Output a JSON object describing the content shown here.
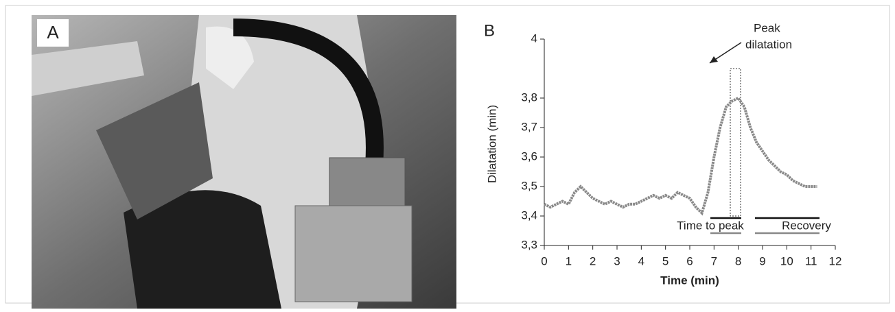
{
  "photo": {
    "label": "A"
  },
  "chart_data": {
    "type": "line",
    "panel_label": "B",
    "x_label": "Time (min)",
    "y_label": "Dilatation (min)",
    "annotations": [
      "Peak",
      "dilatation",
      "Time to peak",
      "Recovery"
    ],
    "xlim": [
      0,
      12
    ],
    "xticks": [
      0,
      1,
      2,
      3,
      4,
      5,
      6,
      7,
      8,
      9,
      10,
      11,
      12
    ],
    "ylim": [
      3.3,
      4
    ],
    "yticks": [
      {
        "value": 3.3,
        "label": "3,3"
      },
      {
        "value": 3.4,
        "label": "3,4"
      },
      {
        "value": 3.5,
        "label": "3,5"
      },
      {
        "value": 3.6,
        "label": "3,6"
      },
      {
        "value": 3.7,
        "label": "3,7"
      },
      {
        "value": 3.8,
        "label": "3,8"
      },
      4
    ],
    "color": "#8a8a8a",
    "x": [
      0,
      0.25,
      0.5,
      0.75,
      1,
      1.25,
      1.5,
      1.75,
      2,
      2.25,
      2.5,
      2.75,
      3,
      3.25,
      3.5,
      3.75,
      4,
      4.25,
      4.5,
      4.75,
      5,
      5.25,
      5.5,
      5.75,
      6,
      6.25,
      6.5,
      6.75,
      7,
      7.25,
      7.5,
      7.75,
      8,
      8.25,
      8.5,
      8.75,
      9,
      9.25,
      9.5,
      9.75,
      10,
      10.25,
      10.5,
      10.75,
      11,
      11.25
    ],
    "values": [
      3.44,
      3.43,
      3.44,
      3.45,
      3.44,
      3.48,
      3.5,
      3.48,
      3.46,
      3.45,
      3.44,
      3.45,
      3.44,
      3.43,
      3.44,
      3.44,
      3.45,
      3.46,
      3.47,
      3.46,
      3.47,
      3.46,
      3.48,
      3.47,
      3.46,
      3.43,
      3.41,
      3.48,
      3.6,
      3.7,
      3.77,
      3.79,
      3.8,
      3.77,
      3.7,
      3.65,
      3.62,
      3.59,
      3.57,
      3.55,
      3.54,
      3.52,
      3.51,
      3.5,
      3.5,
      3.5
    ]
  }
}
